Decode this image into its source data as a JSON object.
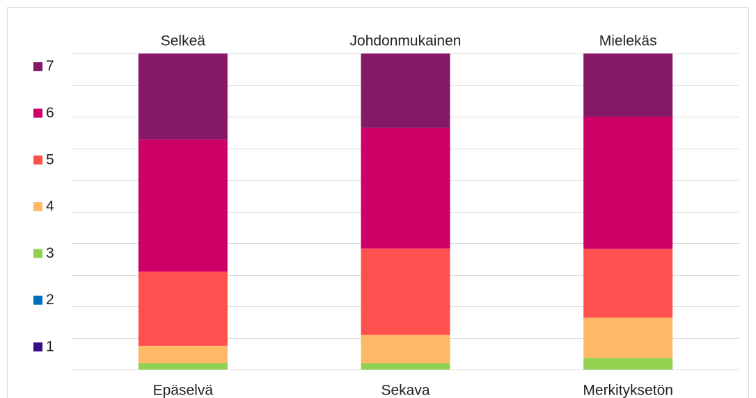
{
  "chart_data": {
    "type": "stacked_bar_100",
    "categories": [
      "Selkeä",
      "Johdonmukainen",
      "Mielekäs"
    ],
    "bottom_labels": [
      "Epäselvä",
      "Sekava",
      "Merkityksetön"
    ],
    "series": [
      {
        "name": "1",
        "color": "#3a0f86",
        "values": [
          0,
          0,
          0
        ]
      },
      {
        "name": "2",
        "color": "#0070c0",
        "values": [
          0,
          0,
          0
        ]
      },
      {
        "name": "3",
        "color": "#92d050",
        "values": [
          2.0,
          2.0,
          3.7
        ]
      },
      {
        "name": "4",
        "color": "#ffb966",
        "values": [
          5.5,
          9.0,
          12.7
        ]
      },
      {
        "name": "5",
        "color": "#ff5050",
        "values": [
          23.5,
          27.3,
          21.8
        ]
      },
      {
        "name": "6",
        "color": "#cc0066",
        "values": [
          41.8,
          38.2,
          41.8
        ]
      },
      {
        "name": "7",
        "color": "#861868",
        "values": [
          27.2,
          23.5,
          20.0
        ]
      }
    ],
    "ylim": [
      0,
      100
    ],
    "yticks": [
      0,
      10,
      20,
      30,
      40,
      50,
      60,
      70,
      80,
      90,
      100
    ],
    "grid": true,
    "legend": "left"
  }
}
